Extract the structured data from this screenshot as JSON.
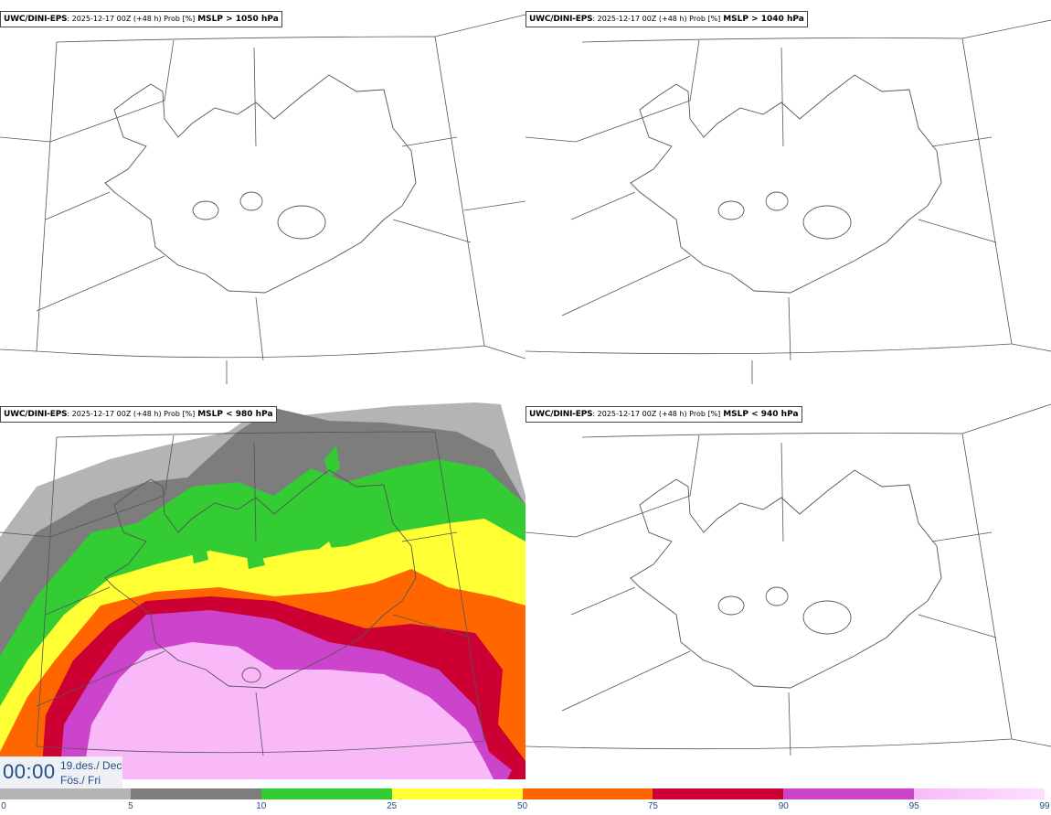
{
  "panels": [
    {
      "model": "UWC/DINI-EPS",
      "run": ": 2025-12-17 00Z (+48 h) Prob [%]",
      "variable": "MSLP > 1050 hPa"
    },
    {
      "model": "UWC/DINI-EPS",
      "run": ": 2025-12-17 00Z (+48 h) Prob [%]",
      "variable": "MSLP > 1040 hPa"
    },
    {
      "model": "UWC/DINI-EPS",
      "run": ": 2025-12-17 00Z (+48 h) Prob [%]",
      "variable": "MSLP < 980 hPa"
    },
    {
      "model": "UWC/DINI-EPS",
      "run": ": 2025-12-17 00Z (+48 h) Prob [%]",
      "variable": "MSLP < 940 hPa"
    }
  ],
  "time": {
    "clock": "00:00",
    "date_line": "19.des./ Dec",
    "day_line": "Fös./ Fri"
  },
  "colorbar": {
    "ticks": [
      "0",
      "5",
      "10",
      "25",
      "50",
      "75",
      "90",
      "95",
      "99"
    ],
    "colors": [
      "#ffffff",
      "#b4b4b4",
      "#7d7d7d",
      "#33cc33",
      "#ffff33",
      "#ff6600",
      "#cc0033",
      "#cc44cc",
      "#f9b9f9"
    ]
  },
  "colors": {
    "prob_5_10": "#b4b4b4",
    "prob_10_25": "#7d7d7d",
    "prob_25_50": "#33cc33",
    "prob_50_75": "#ffff33",
    "prob_75_90": "#ff6600",
    "prob_90_95": "#cc0033",
    "prob_95_99": "#cc44cc",
    "prob_99_plus": "#f9b9f9"
  }
}
